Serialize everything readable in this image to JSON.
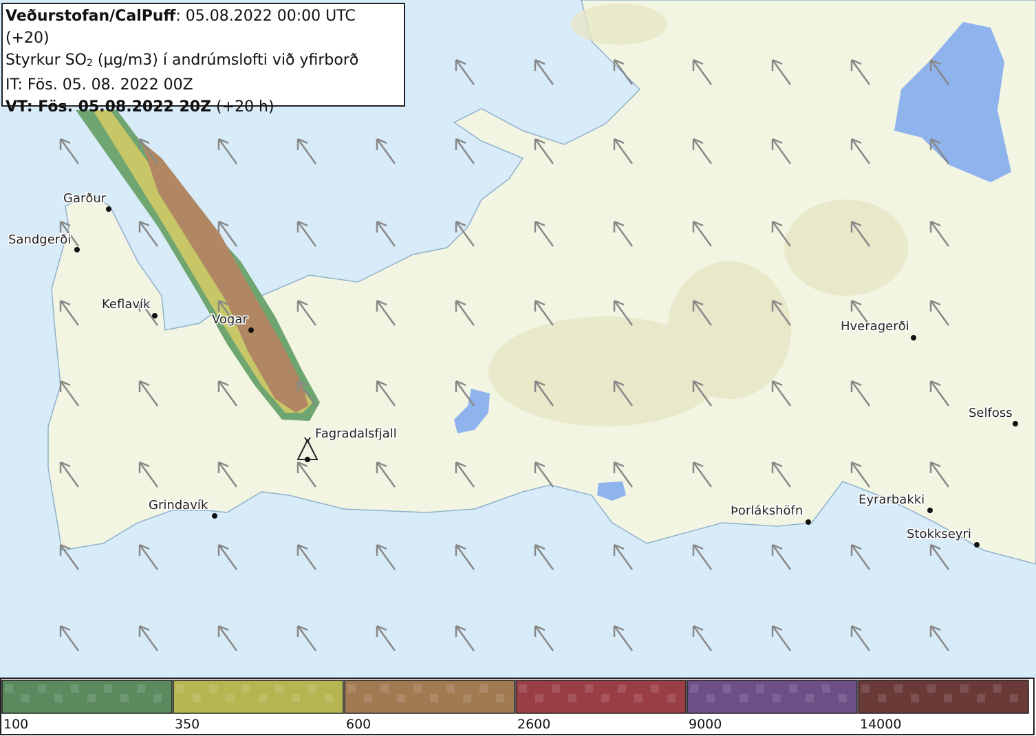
{
  "header": {
    "source": "Veðurstofan/CalPuff",
    "run": ": 05.08.2022 00:00 UTC (+20)",
    "quantity": [
      "Styrkur SO",
      "2",
      " (µg/m3) í andrúmslofti við yfirborð"
    ],
    "issue_time": "IT: Fös. 05. 08. 2022 00Z",
    "valid_time": "VT: Fös. 05.08.2022 20Z",
    "lead": " (+20 h)"
  },
  "places": [
    "Garður",
    "Sandgerði",
    "Keflavík",
    "Vogar",
    "Fagradalsfjall",
    "Grindavík",
    "Þorlákshöfn",
    "Hveragerði",
    "Selfoss",
    "Eyrarbakki",
    "Stokkseyri"
  ],
  "legend": {
    "thresholds": [
      100,
      350,
      600,
      2600,
      9000,
      14000
    ],
    "colors": [
      "#5a8a5e",
      "#b5b552",
      "#a27a52",
      "#9a3e46",
      "#6e4e86",
      "#6a3a38"
    ]
  }
}
